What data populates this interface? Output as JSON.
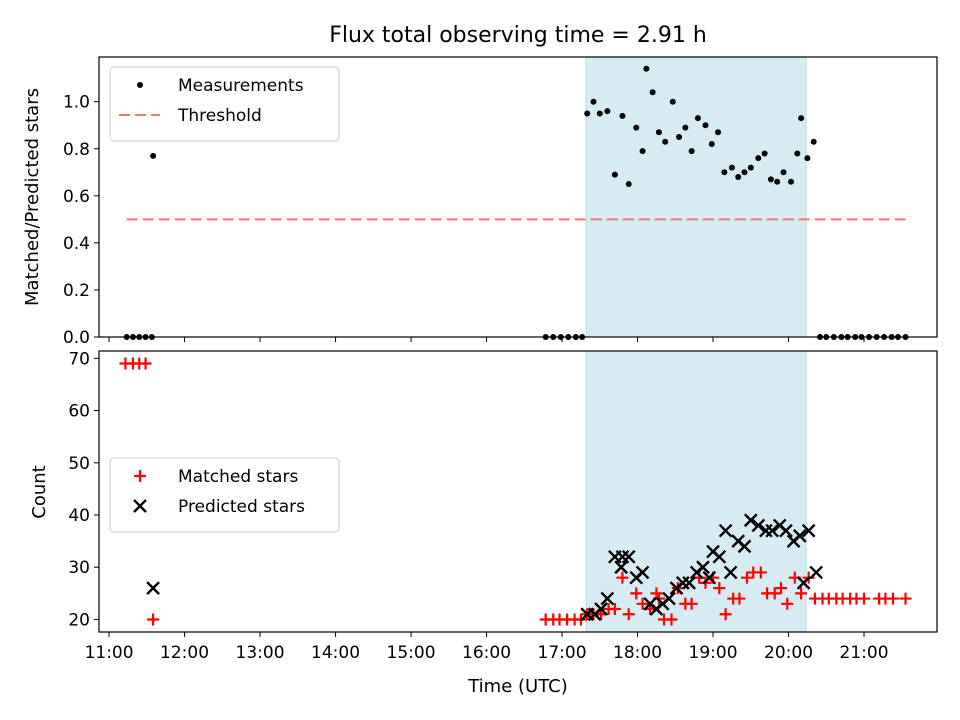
{
  "chart_data": [
    {
      "type": "scatter",
      "title": "Flux total observing time = 2.91 h",
      "xlabel": "",
      "ylabel": "Matched/Predicted stars",
      "xlim": [
        "10:52",
        "21:58"
      ],
      "ylim": [
        0,
        1.19
      ],
      "yticks": [
        "0.0",
        "0.2",
        "0.4",
        "0.6",
        "0.8",
        "1.0"
      ],
      "shaded_region": {
        "x": [
          "17:19",
          "20:14"
        ],
        "color": "#add8e6"
      },
      "legend_position": "upper left",
      "series": [
        {
          "name": "Measurements",
          "marker": "dot",
          "color": "#000000",
          "points": [
            [
              "11:14",
              0
            ],
            [
              "11:19",
              0
            ],
            [
              "11:24",
              0
            ],
            [
              "11:29",
              0
            ],
            [
              "11:34",
              0
            ],
            [
              "11:35",
              0.77
            ],
            [
              "16:47",
              0
            ],
            [
              "16:53",
              0
            ],
            [
              "16:59",
              0
            ],
            [
              "17:05",
              0
            ],
            [
              "17:11",
              0
            ],
            [
              "17:16",
              0
            ],
            [
              "17:20",
              0.95
            ],
            [
              "17:25",
              1.0
            ],
            [
              "17:30",
              0.95
            ],
            [
              "17:36",
              0.96
            ],
            [
              "17:42",
              0.69
            ],
            [
              "17:48",
              0.94
            ],
            [
              "17:53",
              0.65
            ],
            [
              "17:59",
              0.89
            ],
            [
              "18:04",
              0.79
            ],
            [
              "18:07",
              1.14
            ],
            [
              "18:12",
              1.04
            ],
            [
              "18:17",
              0.87
            ],
            [
              "18:22",
              0.83
            ],
            [
              "18:28",
              1.0
            ],
            [
              "18:33",
              0.85
            ],
            [
              "18:38",
              0.89
            ],
            [
              "18:43",
              0.79
            ],
            [
              "18:48",
              0.93
            ],
            [
              "18:54",
              0.9
            ],
            [
              "18:59",
              0.82
            ],
            [
              "19:04",
              0.87
            ],
            [
              "19:09",
              0.7
            ],
            [
              "19:15",
              0.72
            ],
            [
              "19:20",
              0.68
            ],
            [
              "19:25",
              0.7
            ],
            [
              "19:30",
              0.72
            ],
            [
              "19:36",
              0.76
            ],
            [
              "19:41",
              0.78
            ],
            [
              "19:46",
              0.67
            ],
            [
              "19:51",
              0.66
            ],
            [
              "19:56",
              0.7
            ],
            [
              "20:02",
              0.66
            ],
            [
              "20:07",
              0.78
            ],
            [
              "20:10",
              0.93
            ],
            [
              "20:15",
              0.76
            ],
            [
              "20:20",
              0.83
            ],
            [
              "20:25",
              0
            ],
            [
              "20:30",
              0
            ],
            [
              "20:36",
              0
            ],
            [
              "20:42",
              0
            ],
            [
              "20:47",
              0
            ],
            [
              "20:53",
              0
            ],
            [
              "20:58",
              0
            ],
            [
              "21:04",
              0
            ],
            [
              "21:10",
              0
            ],
            [
              "21:16",
              0
            ],
            [
              "21:22",
              0
            ],
            [
              "21:27",
              0
            ],
            [
              "21:33",
              0
            ]
          ]
        },
        {
          "name": "Threshold",
          "style": "dashed",
          "color": "#ff7070",
          "points": [
            [
              "11:14",
              0.5
            ],
            [
              "21:33",
              0.5
            ]
          ]
        }
      ]
    },
    {
      "type": "scatter",
      "title": "",
      "xlabel": "Time (UTC)",
      "ylabel": "Count",
      "xlim": [
        "10:52",
        "21:58"
      ],
      "ylim": [
        17.6,
        71.4
      ],
      "yticks": [
        "20",
        "30",
        "40",
        "50",
        "60",
        "70"
      ],
      "xticks": [
        "11:00",
        "12:00",
        "13:00",
        "14:00",
        "15:00",
        "16:00",
        "17:00",
        "18:00",
        "19:00",
        "20:00",
        "21:00"
      ],
      "shaded_region": {
        "x": [
          "17:19",
          "20:14"
        ],
        "color": "#add8e6"
      },
      "legend_position": "center left",
      "series": [
        {
          "name": "Matched stars",
          "marker": "plus",
          "color": "#ff0000",
          "points": [
            [
              "11:13",
              69
            ],
            [
              "11:19",
              69
            ],
            [
              "11:24",
              69
            ],
            [
              "11:29",
              69
            ],
            [
              "11:35",
              20
            ],
            [
              "16:47",
              20
            ],
            [
              "16:53",
              20
            ],
            [
              "16:58",
              20
            ],
            [
              "17:04",
              20
            ],
            [
              "17:10",
              20
            ],
            [
              "17:15",
              20
            ],
            [
              "17:20",
              21
            ],
            [
              "17:25",
              21
            ],
            [
              "17:31",
              21
            ],
            [
              "17:37",
              22
            ],
            [
              "17:42",
              22
            ],
            [
              "17:48",
              28
            ],
            [
              "17:53",
              21
            ],
            [
              "17:59",
              25
            ],
            [
              "18:04",
              23
            ],
            [
              "18:10",
              22
            ],
            [
              "18:15",
              25
            ],
            [
              "18:17",
              24
            ],
            [
              "18:21",
              20
            ],
            [
              "18:27",
              20
            ],
            [
              "18:32",
              26
            ],
            [
              "18:38",
              23
            ],
            [
              "18:43",
              23
            ],
            [
              "18:49",
              28
            ],
            [
              "18:54",
              27
            ],
            [
              "19:00",
              28
            ],
            [
              "19:05",
              26
            ],
            [
              "19:10",
              21
            ],
            [
              "19:16",
              24
            ],
            [
              "19:21",
              24
            ],
            [
              "19:27",
              28
            ],
            [
              "19:32",
              29
            ],
            [
              "19:38",
              29
            ],
            [
              "19:43",
              25
            ],
            [
              "19:49",
              25
            ],
            [
              "19:54",
              26
            ],
            [
              "19:59",
              23
            ],
            [
              "20:05",
              28
            ],
            [
              "20:10",
              25
            ],
            [
              "20:16",
              28
            ],
            [
              "20:21",
              24
            ],
            [
              "20:27",
              24
            ],
            [
              "20:32",
              24
            ],
            [
              "20:38",
              24
            ],
            [
              "20:43",
              24
            ],
            [
              "20:49",
              24
            ],
            [
              "20:54",
              24
            ],
            [
              "21:00",
              24
            ],
            [
              "21:12",
              24
            ],
            [
              "21:17",
              24
            ],
            [
              "21:23",
              24
            ],
            [
              "21:33",
              24
            ]
          ]
        },
        {
          "name": "Predicted stars",
          "marker": "x",
          "color": "#000000",
          "points": [
            [
              "11:35",
              26
            ],
            [
              "17:20",
              21
            ],
            [
              "17:26",
              21
            ],
            [
              "17:31",
              22
            ],
            [
              "17:36",
              24
            ],
            [
              "17:42",
              32
            ],
            [
              "17:47",
              30
            ],
            [
              "17:48",
              32
            ],
            [
              "17:53",
              32
            ],
            [
              "17:59",
              28
            ],
            [
              "18:04",
              29
            ],
            [
              "18:10",
              23
            ],
            [
              "18:15",
              22
            ],
            [
              "18:20",
              23
            ],
            [
              "18:25",
              24
            ],
            [
              "18:31",
              26
            ],
            [
              "18:36",
              27
            ],
            [
              "18:41",
              27
            ],
            [
              "18:47",
              29
            ],
            [
              "18:52",
              30
            ],
            [
              "18:57",
              28
            ],
            [
              "19:00",
              33
            ],
            [
              "19:05",
              32
            ],
            [
              "19:10",
              37
            ],
            [
              "19:14",
              29
            ],
            [
              "19:20",
              35
            ],
            [
              "19:25",
              34
            ],
            [
              "19:30",
              39
            ],
            [
              "19:36",
              38
            ],
            [
              "19:42",
              37
            ],
            [
              "19:47",
              37
            ],
            [
              "19:53",
              38
            ],
            [
              "19:58",
              37
            ],
            [
              "20:04",
              35
            ],
            [
              "20:09",
              36
            ],
            [
              "20:12",
              27
            ],
            [
              "20:16",
              37
            ],
            [
              "20:22",
              29
            ]
          ]
        }
      ]
    }
  ]
}
